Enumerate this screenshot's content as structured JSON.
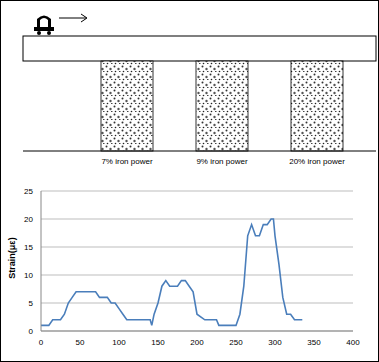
{
  "diagram": {
    "columns": [
      {
        "label": "7% iron power"
      },
      {
        "label": "9% iron power"
      },
      {
        "label": "20% iron power"
      }
    ]
  },
  "chart_data": {
    "type": "line",
    "y_label": "Strain(με)",
    "x": [
      0,
      10,
      15,
      25,
      30,
      35,
      40,
      45,
      60,
      70,
      75,
      85,
      90,
      95,
      100,
      105,
      110,
      130,
      140,
      142,
      145,
      150,
      155,
      160,
      165,
      175,
      180,
      185,
      190,
      195,
      200,
      210,
      225,
      228,
      250,
      255,
      260,
      265,
      270,
      275,
      280,
      285,
      290,
      295,
      298,
      300,
      305,
      310,
      315,
      320,
      325,
      335
    ],
    "values": [
      1,
      1,
      2,
      2,
      3,
      5,
      6,
      7,
      7,
      7,
      6,
      6,
      5,
      5,
      4,
      3,
      2,
      2,
      2,
      1,
      3,
      5,
      8,
      9,
      8,
      8,
      9,
      9,
      8,
      7,
      3,
      2,
      2,
      1,
      1,
      3,
      8,
      17,
      19,
      17,
      17,
      19,
      19,
      20,
      20,
      17,
      12,
      6,
      3,
      3,
      2,
      2
    ],
    "color": "#4a7ebb",
    "xlim": [
      0,
      400
    ],
    "xticks": [
      0,
      50,
      100,
      150,
      200,
      250,
      300,
      350,
      400
    ],
    "ylim": [
      0,
      25
    ],
    "yticks": [
      0,
      5,
      10,
      15,
      20,
      25
    ],
    "grid": true
  }
}
